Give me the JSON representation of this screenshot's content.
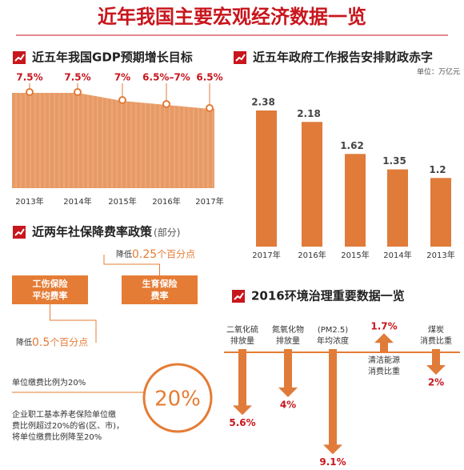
{
  "title": "近年我国主要宏观经济数据一览",
  "chart_data": [
    {
      "type": "area",
      "title": "近五年我国GDP预期增长目标",
      "categories": [
        "2013年",
        "2014年",
        "2015年",
        "2016年",
        "2017年"
      ],
      "values": [
        7.5,
        7.5,
        7,
        [
          6.5,
          7
        ],
        6.5
      ],
      "value_labels": [
        "7.5%",
        "7.5%",
        "7%",
        "6.5%–7%",
        "6.5%"
      ],
      "color": "#e89a64"
    },
    {
      "type": "bar",
      "title": "近五年政府工作报告安排财政赤字",
      "unit": "单位：万亿元",
      "categories": [
        "2017年",
        "2016年",
        "2015年",
        "2014年",
        "2013年"
      ],
      "values": [
        2.38,
        2.18,
        1.62,
        1.35,
        1.2
      ],
      "color": "#e07b3a"
    },
    {
      "type": "arrow",
      "title": "2016环境治理重要数据一览",
      "categories": [
        [
          "二氧化硫",
          "排放量"
        ],
        [
          "氮氧化物",
          "排放量"
        ],
        [
          "(PM2.5)",
          "年均浓度"
        ],
        [
          "清洁能源",
          "消费比重"
        ],
        [
          "煤炭",
          "消费比重"
        ]
      ],
      "values": [
        5.6,
        4,
        9.1,
        1.7,
        2
      ],
      "value_labels": [
        "5.6%",
        "4%",
        "9.1%",
        "1.7%",
        "2%"
      ],
      "directions": [
        "down",
        "down",
        "down",
        "up",
        "down"
      ],
      "color": "#e07b3a"
    }
  ],
  "social_security": {
    "title": "近两年社保降费率政策",
    "title_note": "(部分)",
    "items": [
      {
        "name": [
          "工伤保险",
          "平均费率"
        ],
        "prefix": "降低",
        "amount": "0.5",
        "suffix": "个百分点"
      },
      {
        "name": [
          "生育保险",
          "费率"
        ],
        "prefix": "降低",
        "amount": "0.25",
        "suffix": "个百分点"
      }
    ]
  },
  "pension": {
    "rate_line": "单位缴费比例为20%",
    "badge": "20%",
    "description": [
      "企业职工基本养老保险单位缴",
      "费比例超过20%的省(区、市)，",
      "将单位缴费比例降至20%"
    ]
  }
}
